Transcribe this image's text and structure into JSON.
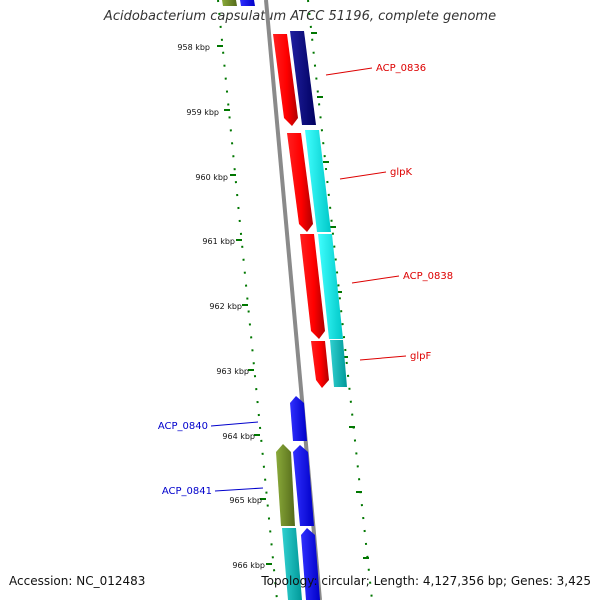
{
  "title": "Acidobacterium capsulatum ATCC 51196, complete genome",
  "footer": {
    "accession": "Accession: NC_012483",
    "summary": "Topology: circular; Length: 4,127,356 bp; Genes: 3,425"
  },
  "ticks": [
    "958 kbp",
    "959 kbp",
    "960 kbp",
    "961 kbp",
    "962 kbp",
    "963 kbp",
    "964 kbp",
    "965 kbp",
    "966 kbp"
  ],
  "gene_labels": [
    {
      "name": "ACP_0836",
      "side": "right",
      "color": "#dd0000"
    },
    {
      "name": "glpK",
      "side": "right",
      "color": "#dd0000"
    },
    {
      "name": "ACP_0838",
      "side": "right",
      "color": "#dd0000"
    },
    {
      "name": "glpF",
      "side": "right",
      "color": "#dd0000"
    },
    {
      "name": "ACP_0840",
      "side": "left",
      "color": "#0000cc"
    },
    {
      "name": "ACP_0841",
      "side": "left",
      "color": "#0000cc"
    }
  ],
  "colors": {
    "backbone": "#888888",
    "tick": "#007700",
    "red_gene": "#ff0000",
    "navy_gene": "#000080",
    "cyan_gene": "#00e0e0",
    "blue_gene": "#0000ff",
    "olive_gene": "#6b8e23",
    "teal_gene": "#00b8b8"
  }
}
